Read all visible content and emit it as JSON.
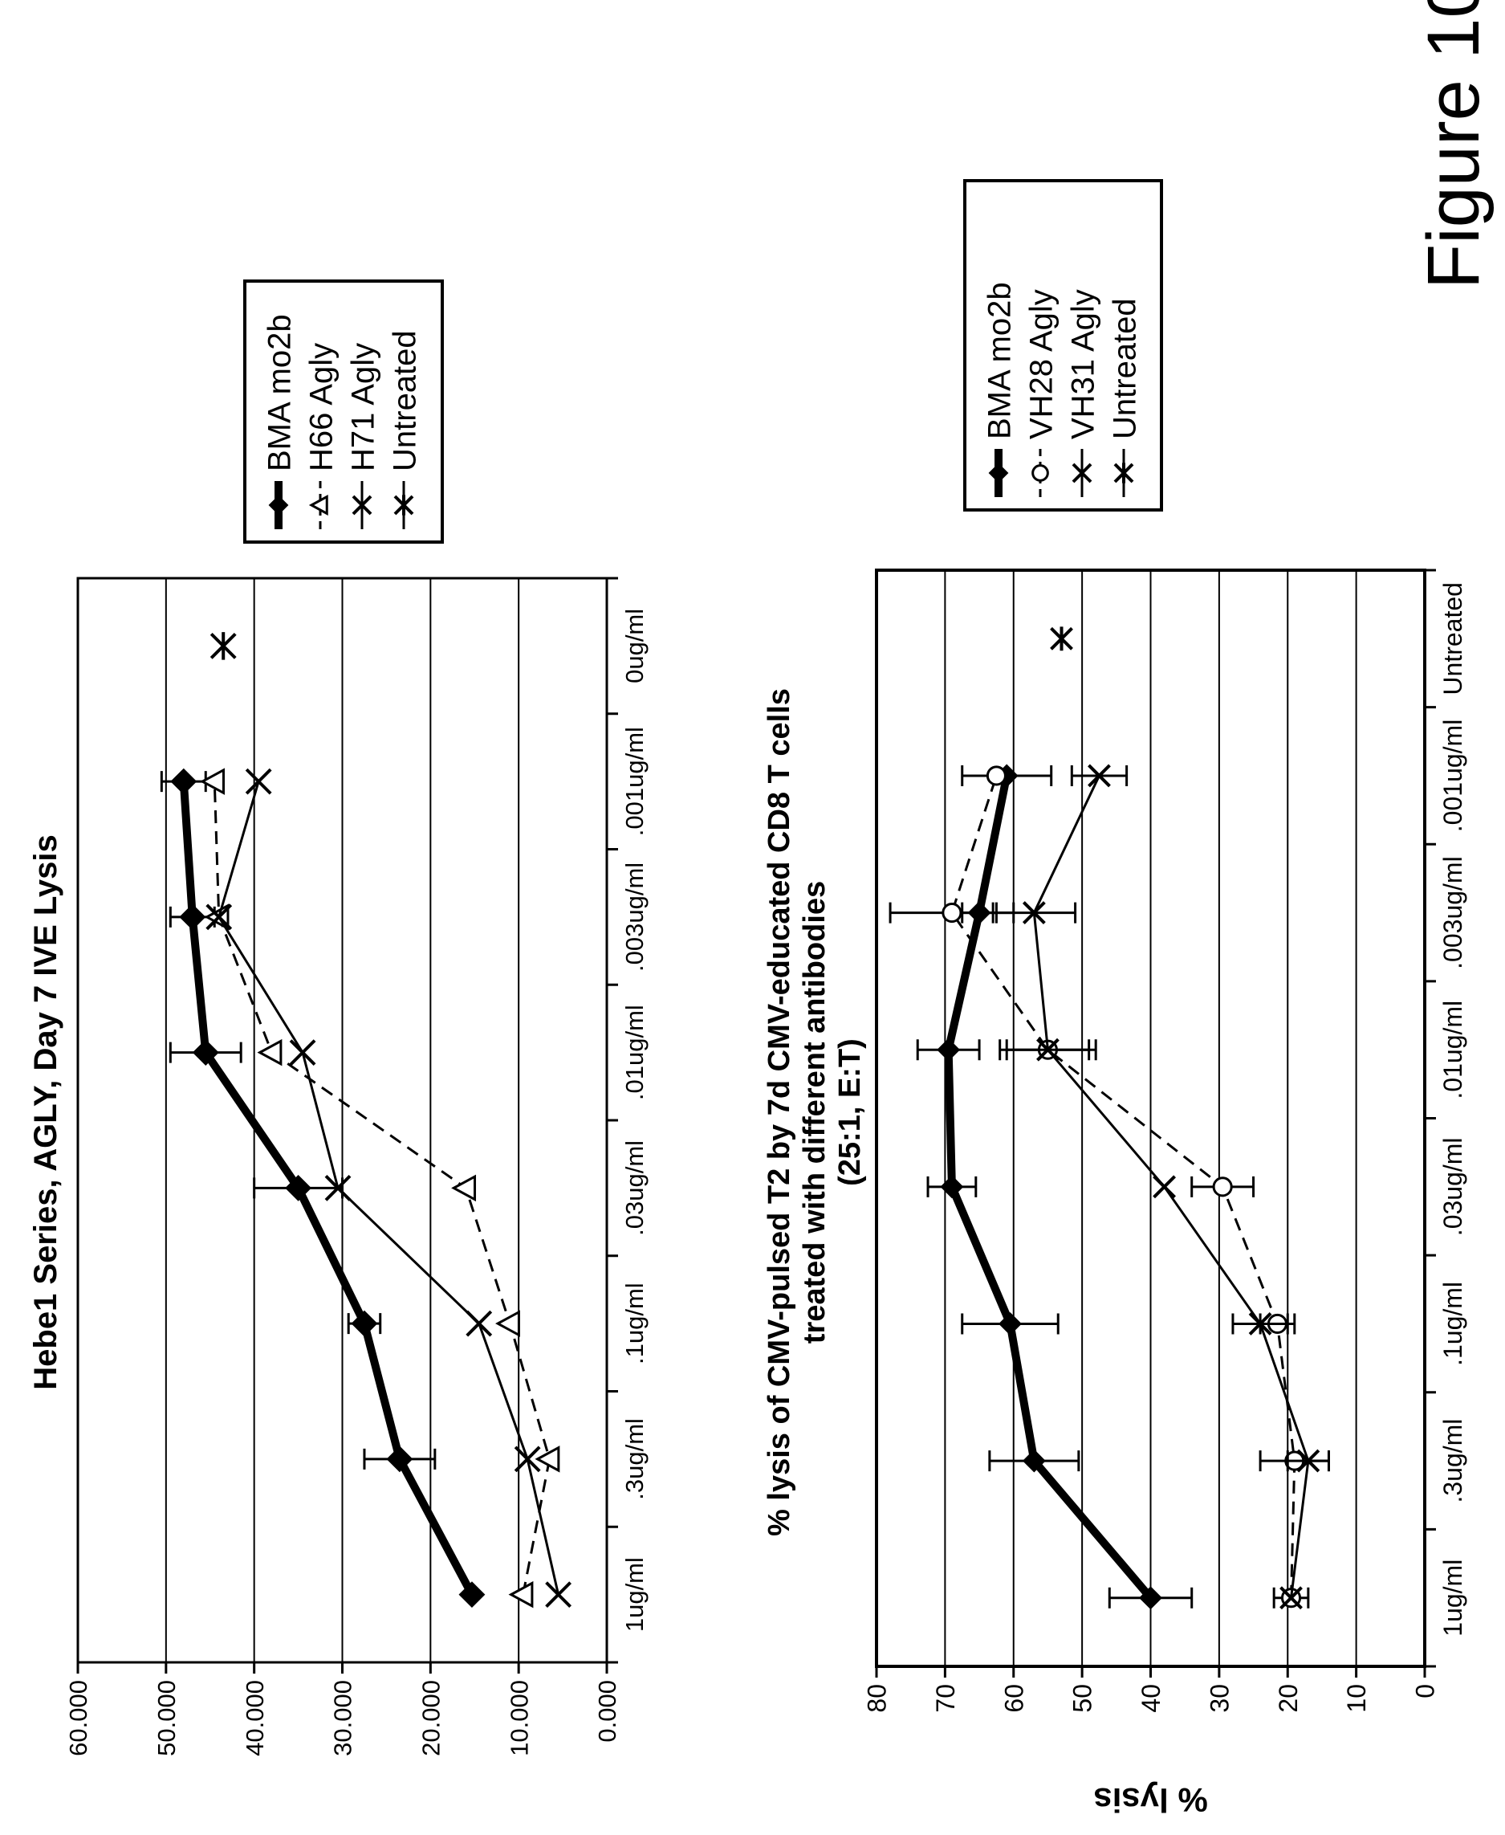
{
  "figure_label": "Figure 10",
  "chart_data": [
    {
      "type": "line",
      "title": "Hebe1 Series, AGLY, Day 7 IVE Lysis",
      "ylabel": "",
      "xlabel": "",
      "ylim": [
        0,
        60
      ],
      "y_ticks": [
        "0.000",
        "10.000",
        "20.000",
        "30.000",
        "40.000",
        "50.000",
        "60.000"
      ],
      "grid": true,
      "legend_position": "right",
      "categories": [
        "1ug/ml",
        ".3ug/ml",
        ".1ug/ml",
        ".03ug/ml",
        ".01ug/ml",
        ".003ug/ml",
        ".001ug/ml",
        "0ug/ml"
      ],
      "series": [
        {
          "name": "BMA mo2b",
          "marker": "diamond",
          "line": "thick-solid",
          "values": [
            15.3,
            23.5,
            27.5,
            35.0,
            45.5,
            47.0,
            48.0,
            null
          ],
          "error": [
            0,
            4.0,
            1.8,
            5.0,
            4.0,
            2.5,
            2.5,
            null
          ]
        },
        {
          "name": "H66 Agly",
          "marker": "triangle-open",
          "line": "dashed",
          "values": [
            9.5,
            6.5,
            11.0,
            16.0,
            38.0,
            44.0,
            44.5,
            null
          ]
        },
        {
          "name": "H71 Agly",
          "marker": "x",
          "line": "solid",
          "values": [
            5.5,
            9.0,
            14.5,
            30.5,
            34.5,
            44.0,
            39.5,
            null
          ]
        },
        {
          "name": "Untreated",
          "marker": "asterisk",
          "line": "none",
          "values": [
            null,
            null,
            null,
            null,
            null,
            null,
            null,
            43.5
          ]
        }
      ]
    },
    {
      "type": "line",
      "title": "% lysis of CMV-pulsed T2 by 7d CMV-educated CD8 T cells treated with different antibodies (25:1, E:T)",
      "title_lines": [
        "% lysis of CMV-pulsed T2 by 7d CMV-educated CD8 T cells",
        "treated with different antibodies",
        "(25:1, E:T)"
      ],
      "ylabel": "% lysis",
      "xlabel": "",
      "ylim": [
        0,
        80
      ],
      "y_ticks": [
        "0",
        "10",
        "20",
        "30",
        "40",
        "50",
        "60",
        "70",
        "80"
      ],
      "grid": true,
      "legend_position": "right",
      "categories": [
        "1ug/ml",
        ".3ug/ml",
        ".1ug/ml",
        ".03ug/ml",
        ".01ug/ml",
        ".003ug/ml",
        ".001ug/ml",
        "Untreated"
      ],
      "series": [
        {
          "name": "BMA mo2b",
          "marker": "diamond",
          "line": "thick-solid",
          "values": [
            40,
            57,
            60.5,
            69,
            69.5,
            65,
            61,
            null
          ],
          "error": [
            6,
            6.5,
            7,
            3.5,
            4.5,
            2.5,
            6.5,
            null
          ]
        },
        {
          "name": "VH28 Agly",
          "marker": "circle-open",
          "line": "dashed",
          "values": [
            19.5,
            19,
            21.5,
            29.5,
            55,
            69,
            62.5,
            null
          ],
          "error": [
            2.5,
            5,
            2.5,
            4.5,
            6,
            9,
            0,
            null
          ]
        },
        {
          "name": "VH31 Agly",
          "marker": "x",
          "line": "solid",
          "values": [
            19.5,
            17,
            24,
            38,
            55,
            57,
            47.5,
            null
          ],
          "error": [
            0,
            3,
            4,
            0,
            7,
            6,
            4,
            null
          ]
        },
        {
          "name": "Untreated",
          "marker": "asterisk",
          "line": "none",
          "values": [
            null,
            null,
            null,
            null,
            null,
            null,
            null,
            53
          ]
        }
      ]
    }
  ]
}
